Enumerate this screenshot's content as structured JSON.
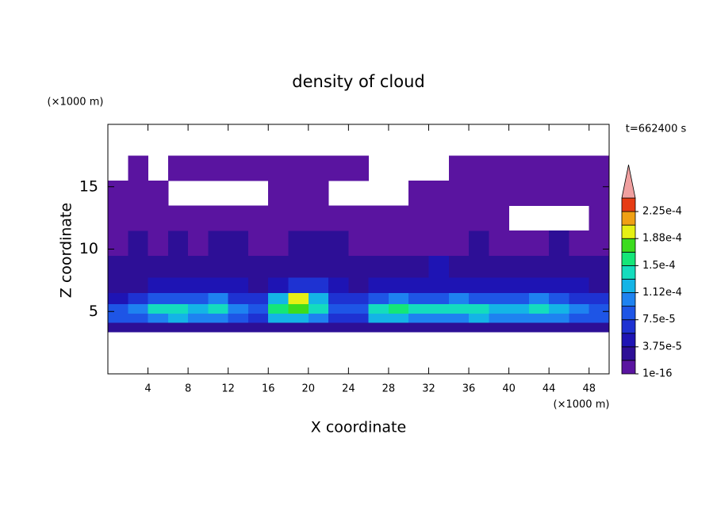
{
  "chart_data": {
    "type": "contour",
    "title": "density of cloud",
    "x_label": "X coordinate",
    "y_label": "Z coordinate",
    "x_unit": "(×1000 m)",
    "y_unit": "(×1000 m)",
    "annotation": "t=662400 s",
    "xlim": [
      0,
      50
    ],
    "ylim": [
      0,
      20
    ],
    "xticks": [
      4,
      8,
      12,
      16,
      20,
      24,
      28,
      32,
      36,
      40,
      44,
      48
    ],
    "yticks": [
      5,
      10,
      15
    ],
    "x": [
      1,
      3,
      5,
      7,
      9,
      11,
      13,
      15,
      17,
      19,
      21,
      23,
      25,
      27,
      29,
      31,
      33,
      35,
      37,
      39,
      41,
      43,
      45,
      47,
      49
    ],
    "y": [
      3.75,
      4.5,
      5.25,
      6.0,
      7.0,
      8.5,
      10.5,
      12.5,
      14.5,
      16.5
    ],
    "z": [
      [
        3e-05,
        3e-05,
        3e-05,
        3e-05,
        3e-05,
        3.5e-05,
        3e-05,
        3e-05,
        3.5e-05,
        3.5e-05,
        3.5e-05,
        3e-05,
        3e-05,
        3.5e-05,
        3.5e-05,
        3.5e-05,
        3e-05,
        3e-05,
        3e-05,
        3e-05,
        3e-05,
        3e-05,
        3e-05,
        3e-05,
        3e-05
      ],
      [
        8e-05,
        9e-05,
        0.00011,
        0.000115,
        0.000105,
        0.00011,
        9e-05,
        6e-05,
        0.00012,
        0.000125,
        0.00011,
        7e-05,
        6e-05,
        0.00012,
        0.000125,
        0.00011,
        0.000105,
        0.00011,
        0.000115,
        0.000105,
        0.0001,
        0.00011,
        0.000105,
        9e-05,
        8e-05
      ],
      [
        9e-05,
        0.00011,
        0.000135,
        0.00014,
        0.00013,
        0.000135,
        0.000105,
        8e-05,
        0.00016,
        0.000175,
        0.00014,
        8e-05,
        9e-05,
        0.000145,
        0.00016,
        0.00014,
        0.000135,
        0.000145,
        0.000145,
        0.00013,
        0.00012,
        0.000135,
        0.000125,
        0.00011,
        9e-05
      ],
      [
        5e-05,
        6e-05,
        8e-05,
        8.5e-05,
        9e-05,
        0.000105,
        7e-05,
        6e-05,
        0.00013,
        0.00019,
        0.00012,
        6e-05,
        6e-05,
        9e-05,
        0.00011,
        9e-05,
        9e-05,
        0.0001,
        8e-05,
        8e-05,
        8e-05,
        0.0001,
        9e-05,
        7e-05,
        6e-05
      ],
      [
        3e-05,
        3.5e-05,
        4e-05,
        4e-05,
        4.5e-05,
        5e-05,
        4e-05,
        3.5e-05,
        5e-05,
        6e-05,
        7e-05,
        4e-05,
        3.5e-05,
        4e-05,
        4.5e-05,
        4e-05,
        4e-05,
        4e-05,
        4e-05,
        4e-05,
        4.5e-05,
        5e-05,
        4.5e-05,
        4e-05,
        3.5e-05
      ],
      [
        2e-05,
        2.5e-05,
        2e-05,
        2.5e-05,
        2.5e-05,
        2.5e-05,
        2.5e-05,
        2e-05,
        2.5e-05,
        3e-05,
        3e-05,
        2.5e-05,
        2.5e-05,
        3e-05,
        3e-05,
        2.5e-05,
        4e-05,
        3e-05,
        2.5e-05,
        2.5e-05,
        3e-05,
        3e-05,
        3e-05,
        2.5e-05,
        2e-05
      ],
      [
        1e-05,
        2e-05,
        1e-05,
        2e-05,
        1e-05,
        2e-05,
        2e-05,
        1e-05,
        1e-05,
        2e-05,
        2e-05,
        2e-05,
        1e-05,
        1e-05,
        1e-05,
        1e-05,
        1e-05,
        1e-05,
        2e-05,
        1e-05,
        1e-05,
        1e-05,
        2e-05,
        1e-05,
        1e-05
      ],
      [
        1e-05,
        1e-05,
        1e-05,
        1e-05,
        1e-05,
        1e-05,
        1e-05,
        1e-05,
        1e-05,
        1e-05,
        1e-05,
        1e-05,
        1e-05,
        1e-05,
        1e-05,
        1e-05,
        1e-05,
        1e-05,
        1e-05,
        1e-05,
        null,
        null,
        null,
        null,
        1e-05
      ],
      [
        1e-05,
        1e-05,
        1e-05,
        null,
        null,
        null,
        null,
        null,
        1e-05,
        1e-05,
        1e-05,
        null,
        null,
        null,
        null,
        1e-05,
        1e-05,
        1e-05,
        1e-05,
        1e-05,
        1e-05,
        1e-05,
        1e-05,
        1e-05,
        1e-05
      ],
      [
        null,
        1e-05,
        null,
        1e-05,
        1e-05,
        1e-05,
        1e-05,
        1e-05,
        1e-05,
        1e-05,
        1e-05,
        1e-05,
        1e-05,
        null,
        null,
        null,
        null,
        1e-05,
        1e-05,
        1e-05,
        1e-05,
        1e-05,
        1e-05,
        1e-05,
        1e-05
      ]
    ],
    "colorbar": {
      "levels": [
        1e-16,
        1.875e-05,
        3.75e-05,
        5.625e-05,
        7.5e-05,
        9.375e-05,
        0.0001125,
        0.00013125,
        0.00015,
        0.00016875,
        0.0001875,
        0.00020625,
        0.000225,
        0.00024375
      ],
      "colors": [
        "#5a14a0",
        "#2d0f96",
        "#1e14b4",
        "#1e32d2",
        "#1e55e6",
        "#1e82f0",
        "#14b4e6",
        "#14dcbe",
        "#14e678",
        "#3cdc1e",
        "#e6f014",
        "#f0a014",
        "#e63c14"
      ],
      "extend_color": "#f0a0a0",
      "ticks": [
        1e-16,
        {
          "value": 3.75e-05,
          "label": "3.75e-5"
        },
        {
          "value": 7.5e-05,
          "label": "7.5e-5"
        },
        {
          "value": 0.0001125,
          "label": "1.12e-4"
        },
        {
          "value": 0.00015,
          "label": "1.5e-4"
        },
        {
          "value": 0.0001875,
          "label": "1.88e-4"
        },
        {
          "value": 0.000225,
          "label": "2.25e-4"
        }
      ]
    }
  }
}
